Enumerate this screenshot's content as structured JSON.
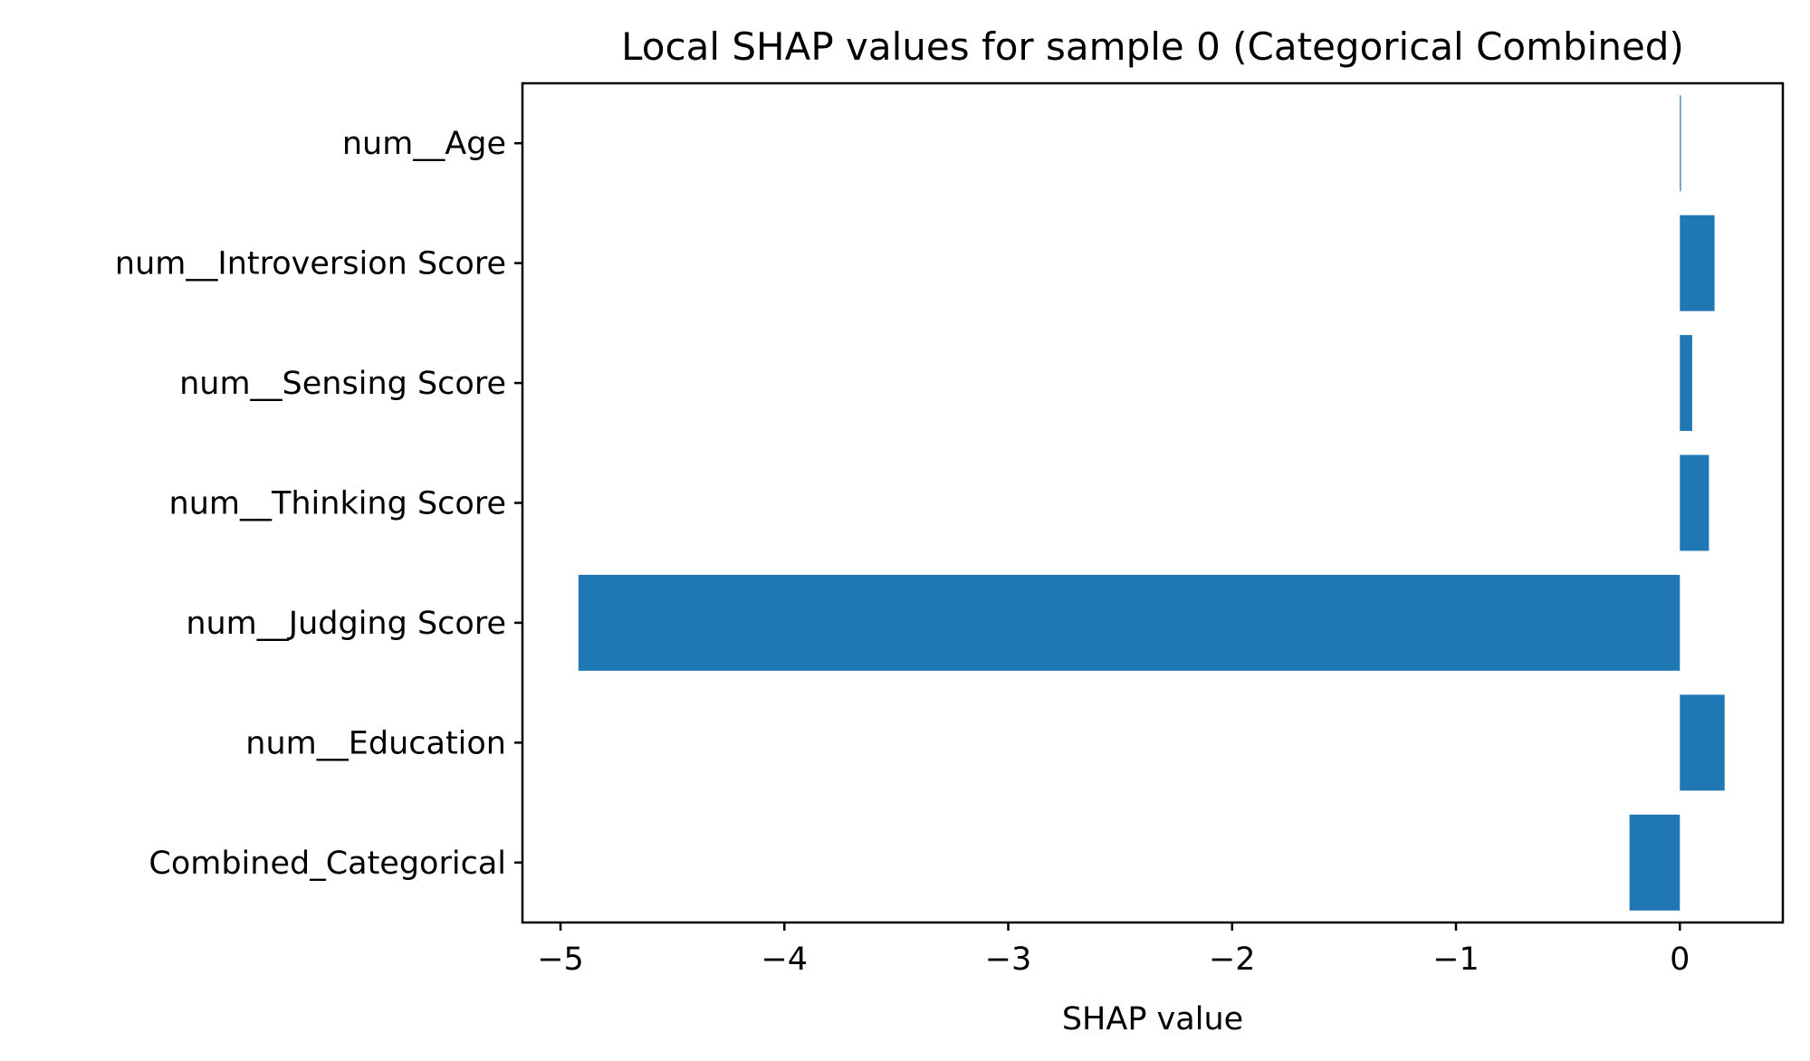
{
  "chart_data": {
    "type": "bar",
    "orientation": "horizontal",
    "title": "Local SHAP values for sample 0 (Categorical Combined)",
    "xlabel": "SHAP value",
    "ylabel": "",
    "categories": [
      "num__Age",
      "num__Introversion Score",
      "num__Sensing Score",
      "num__Thinking Score",
      "num__Judging Score",
      "num__Education",
      "Combined_Categorical"
    ],
    "values": [
      0.005,
      0.155,
      0.055,
      0.13,
      -4.92,
      0.2,
      -0.225
    ],
    "xlim": [
      -5.17,
      0.46
    ],
    "xticks": [
      -5,
      -4,
      -3,
      -2,
      -1,
      0
    ],
    "xtick_labels": [
      "−5",
      "−4",
      "−3",
      "−2",
      "−1",
      "0"
    ],
    "bar_color": "#1f77b4",
    "grid": false,
    "legend": "none"
  }
}
